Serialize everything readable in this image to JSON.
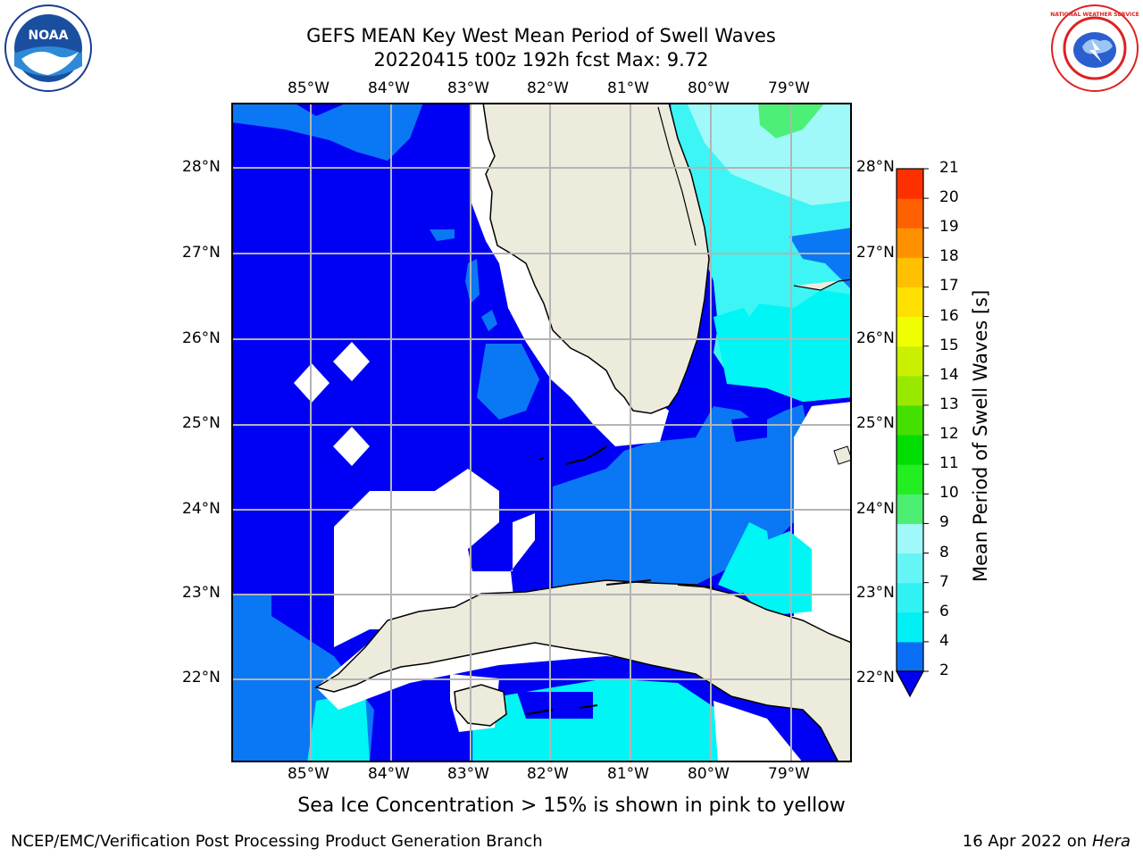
{
  "header": {
    "title_line1": "GEFS MEAN Key West Mean Period of Swell Waves",
    "title_line2": "20220415 t00z 192h fcst   Max: 9.72"
  },
  "logos": {
    "left": "NOAA",
    "right": "NATIONAL WEATHER SERVICE"
  },
  "map": {
    "lon_labels": [
      "85°W",
      "84°W",
      "83°W",
      "82°W",
      "81°W",
      "80°W",
      "79°W"
    ],
    "lat_labels": [
      "28°N",
      "27°N",
      "26°N",
      "25°N",
      "24°N",
      "23°N",
      "22°N"
    ],
    "palette": {
      "land": "#edebdc",
      "deep_blue": "#0000f5",
      "mid_blue": "#0a78f5",
      "cyan": "#00f5f5",
      "light_cyan": "#3df5f5",
      "pale_cyan": "#9ff9f9",
      "green": "#4cf076",
      "grid": "#b4b4b4"
    }
  },
  "colorbar": {
    "title": "Mean Period of Swell Waves [s]",
    "ticks": [
      "2",
      "4",
      "6",
      "7",
      "8",
      "9",
      "10",
      "11",
      "12",
      "13",
      "14",
      "15",
      "16",
      "17",
      "18",
      "19",
      "20",
      "21"
    ],
    "colors": [
      "#0a6ef5",
      "#00f0f5",
      "#30f2f2",
      "#66f5f5",
      "#9ff9f9",
      "#4cee72",
      "#22ee22",
      "#00dd00",
      "#44e000",
      "#99e800",
      "#c8f000",
      "#f0ff00",
      "#ffe000",
      "#ffc000",
      "#ff9000",
      "#ff6000",
      "#ff3000",
      "#ff0000"
    ],
    "extend_color": "#0000f5"
  },
  "footer": {
    "note": "Sea Ice Concentration > 15% is shown in pink to yellow",
    "org": "NCEP/EMC/Verification Post Processing Product Generation Branch",
    "date": "16 Apr 2022 on ",
    "machine": "Hera"
  }
}
